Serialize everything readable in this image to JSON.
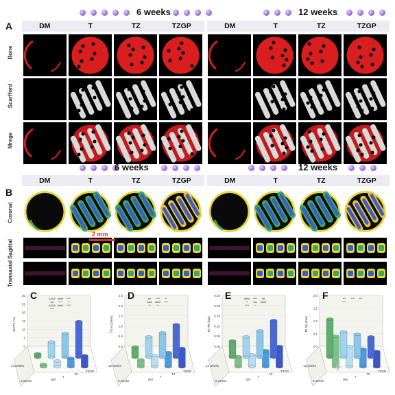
{
  "section_a": {
    "label": "A",
    "time_headers": [
      "6 weeks",
      "12 weeks"
    ],
    "groups": [
      "DM",
      "T",
      "TZ",
      "TZGP"
    ],
    "rows": [
      "Bone",
      "Scarfford",
      "Mrege"
    ]
  },
  "section_b": {
    "label": "B",
    "time_headers": [
      "6 weeks",
      "12 weeks"
    ],
    "groups": [
      "DM",
      "T",
      "TZ",
      "TZGP"
    ],
    "rows": [
      "Coronal",
      "Sagittal",
      "Transaxial"
    ],
    "scale_bar": "2 mm"
  },
  "colors": {
    "bone": "#d81e1e",
    "scaffold": "#d9d9d9",
    "accent_dot": "#9b6cd8",
    "bar_group_bg": "#eceaf3"
  },
  "chart_data": [
    {
      "type": "bar",
      "panel": "C",
      "ylabel": "BV/TV (%)",
      "categories": [
        "DM",
        "T",
        "TZ",
        "TZGP"
      ],
      "series": [
        {
          "name": "6 weeks",
          "values": [
            1.5,
            3.5,
            5.0,
            6.5
          ]
        },
        {
          "name": "12 weeks",
          "values": [
            2.0,
            9.0,
            14.0,
            21.0
          ]
        }
      ],
      "ylim": [
        0,
        30
      ],
      "yticks": [
        "0",
        "5",
        "10",
        "15",
        "20",
        "25",
        "30"
      ],
      "annotations": [
        "&&&&",
        "####",
        "****",
        "##",
        "****",
        "**",
        "&&&&",
        "####",
        "****",
        "****"
      ]
    },
    {
      "type": "bar",
      "panel": "D",
      "ylabel": "Tb.N (1/mm)",
      "categories": [
        "DM",
        "T",
        "TZ",
        "TZGP"
      ],
      "series": [
        {
          "name": "6 weeks",
          "values": [
            0.35,
            0.55,
            0.7,
            0.9
          ]
        },
        {
          "name": "12 weeks",
          "values": [
            0.5,
            1.0,
            1.2,
            1.6
          ]
        }
      ],
      "ylim": [
        0,
        2.5
      ],
      "yticks": [
        "0.0",
        "0.5",
        "1.0",
        "1.5",
        "2.0",
        "2.5"
      ],
      "annotations": [
        "##",
        "****",
        "**",
        "&&&",
        "####",
        "****",
        "**",
        "**"
      ]
    },
    {
      "type": "bar",
      "panel": "E",
      "ylabel": "Tb.Th (mm)",
      "categories": [
        "DM",
        "T",
        "TZ",
        "TZGP"
      ],
      "series": [
        {
          "name": "6 weeks",
          "values": [
            0.05,
            0.06,
            0.08,
            0.1
          ]
        },
        {
          "name": "12 weeks",
          "values": [
            0.08,
            0.1,
            0.13,
            0.18
          ]
        }
      ],
      "ylim": [
        0,
        0.25
      ],
      "yticks": [
        "0.00",
        "0.05",
        "0.10",
        "0.15",
        "0.20",
        "0.25"
      ],
      "annotations": [
        "####",
        "****",
        "##",
        "**",
        "&&",
        "####",
        "****",
        "*"
      ]
    },
    {
      "type": "bar",
      "panel": "F",
      "ylabel": "Tb.Sp (mm)",
      "categories": [
        "DM",
        "T",
        "TZ",
        "TZGP"
      ],
      "series": [
        {
          "name": "6 weeks",
          "values": [
            1.2,
            0.8,
            0.7,
            0.6
          ]
        },
        {
          "name": "12 weeks",
          "values": [
            1.5,
            1.0,
            0.9,
            0.8
          ]
        }
      ],
      "ylim": [
        0,
        2.0
      ],
      "yticks": [
        "0.0",
        "0.5",
        "1.0",
        "1.5",
        "2.0"
      ],
      "annotations": [
        "***",
        "***",
        "***",
        "****"
      ]
    }
  ],
  "axis_labels": {
    "time": [
      "12 weeks",
      "6 weeks"
    ],
    "groups": [
      "DM",
      "T",
      "TZ",
      "TZGP"
    ]
  }
}
